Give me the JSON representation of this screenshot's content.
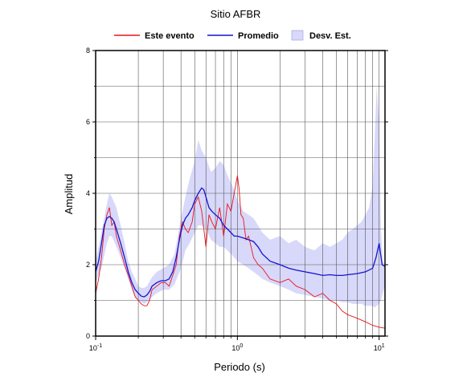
{
  "chart_data": {
    "type": "line",
    "title": "Sitio AFBR",
    "xlabel": "Periodo (s)",
    "ylabel": "Amplitud",
    "x_scale": "log",
    "xlim": [
      0.1,
      11
    ],
    "ylim": [
      0,
      8
    ],
    "grid": true,
    "legend_placement": "top",
    "x_tick_labels": [
      {
        "value": 0.1,
        "base": "10",
        "exp": "-1"
      },
      {
        "value": 1,
        "base": "10",
        "exp": "0"
      },
      {
        "value": 10,
        "base": "10",
        "exp": "1"
      }
    ],
    "y_ticks": [
      0,
      2,
      4,
      6,
      8
    ],
    "legend": [
      {
        "label": "Este evento",
        "color": "#e8141c",
        "kind": "line"
      },
      {
        "label": "Promedio",
        "color": "#1414d2",
        "kind": "line"
      },
      {
        "label": "Desv. Est.",
        "color": "#d8d8fa",
        "kind": "patch"
      }
    ],
    "series": [
      {
        "name": "Este evento",
        "color": "#e8141c",
        "x": [
          0.1,
          0.105,
          0.11,
          0.115,
          0.12,
          0.125,
          0.13,
          0.135,
          0.14,
          0.15,
          0.16,
          0.17,
          0.18,
          0.19,
          0.2,
          0.21,
          0.22,
          0.23,
          0.24,
          0.25,
          0.27,
          0.29,
          0.31,
          0.33,
          0.35,
          0.37,
          0.39,
          0.41,
          0.43,
          0.45,
          0.48,
          0.5,
          0.53,
          0.56,
          0.58,
          0.6,
          0.63,
          0.66,
          0.7,
          0.75,
          0.8,
          0.85,
          0.9,
          0.95,
          1.0,
          1.03,
          1.06,
          1.1,
          1.15,
          1.2,
          1.3,
          1.4,
          1.5,
          1.7,
          2.0,
          2.3,
          2.6,
          3.0,
          3.5,
          4.0,
          4.5,
          5.0,
          5.5,
          6.0,
          7.0,
          8.0,
          9.0,
          10.0,
          11.0
        ],
        "y": [
          1.2,
          1.6,
          2.2,
          3.0,
          3.4,
          3.6,
          3.1,
          3.2,
          2.8,
          2.4,
          2.0,
          1.7,
          1.4,
          1.1,
          1.0,
          0.9,
          0.85,
          0.85,
          1.0,
          1.3,
          1.4,
          1.5,
          1.5,
          1.4,
          1.7,
          2.0,
          2.8,
          3.2,
          3.0,
          2.9,
          3.2,
          3.7,
          3.9,
          3.5,
          3.0,
          2.5,
          3.4,
          3.2,
          3.0,
          3.6,
          2.8,
          3.7,
          3.5,
          4.0,
          4.5,
          4.1,
          3.4,
          3.3,
          2.7,
          2.8,
          2.2,
          2.0,
          1.9,
          1.6,
          1.5,
          1.6,
          1.4,
          1.3,
          1.1,
          1.2,
          1.0,
          0.9,
          0.7,
          0.6,
          0.5,
          0.4,
          0.3,
          0.25,
          0.22
        ]
      },
      {
        "name": "Promedio",
        "color": "#1414d2",
        "x": [
          0.1,
          0.105,
          0.11,
          0.115,
          0.12,
          0.125,
          0.13,
          0.135,
          0.14,
          0.15,
          0.16,
          0.17,
          0.18,
          0.19,
          0.2,
          0.21,
          0.22,
          0.23,
          0.24,
          0.25,
          0.27,
          0.29,
          0.31,
          0.33,
          0.35,
          0.37,
          0.39,
          0.41,
          0.43,
          0.45,
          0.48,
          0.5,
          0.53,
          0.56,
          0.58,
          0.6,
          0.63,
          0.66,
          0.7,
          0.75,
          0.8,
          0.85,
          0.9,
          0.95,
          1.0,
          1.1,
          1.2,
          1.3,
          1.4,
          1.5,
          1.7,
          2.0,
          2.3,
          2.6,
          3.0,
          3.5,
          4.0,
          4.5,
          5.0,
          5.5,
          6.0,
          7.0,
          8.0,
          9.0,
          9.5,
          10.0,
          10.5,
          11.0
        ],
        "y": [
          1.8,
          2.1,
          2.6,
          3.1,
          3.3,
          3.35,
          3.3,
          3.2,
          3.0,
          2.6,
          2.2,
          1.8,
          1.5,
          1.3,
          1.2,
          1.12,
          1.1,
          1.15,
          1.25,
          1.4,
          1.5,
          1.55,
          1.55,
          1.6,
          1.8,
          2.2,
          2.7,
          3.1,
          3.3,
          3.4,
          3.6,
          3.8,
          4.0,
          4.15,
          4.1,
          3.9,
          3.6,
          3.5,
          3.4,
          3.3,
          3.1,
          3.0,
          2.9,
          2.8,
          2.8,
          2.75,
          2.7,
          2.65,
          2.5,
          2.3,
          2.1,
          2.0,
          1.9,
          1.85,
          1.8,
          1.75,
          1.7,
          1.72,
          1.7,
          1.7,
          1.72,
          1.75,
          1.8,
          1.9,
          2.2,
          2.6,
          2.0,
          1.95
        ]
      }
    ],
    "band": {
      "name": "Desv. Est.",
      "color": "#d8d8fa",
      "x": [
        0.1,
        0.11,
        0.12,
        0.125,
        0.13,
        0.14,
        0.15,
        0.16,
        0.17,
        0.18,
        0.19,
        0.2,
        0.21,
        0.22,
        0.23,
        0.25,
        0.27,
        0.3,
        0.33,
        0.36,
        0.4,
        0.43,
        0.46,
        0.5,
        0.53,
        0.56,
        0.6,
        0.65,
        0.7,
        0.75,
        0.8,
        0.85,
        0.9,
        0.95,
        1.0,
        1.1,
        1.2,
        1.3,
        1.4,
        1.5,
        1.7,
        2.0,
        2.3,
        2.6,
        3.0,
        3.5,
        4.0,
        4.5,
        5.0,
        5.5,
        6.0,
        6.5,
        7.0,
        7.5,
        8.0,
        8.5,
        9.0,
        9.3,
        9.6,
        10.0,
        10.3,
        10.6,
        11.0
      ],
      "upper": [
        2.1,
        2.9,
        3.7,
        4.0,
        3.9,
        3.6,
        3.1,
        2.6,
        2.1,
        1.8,
        1.6,
        1.4,
        1.35,
        1.35,
        1.4,
        1.65,
        1.8,
        1.9,
        2.0,
        2.3,
        3.3,
        3.9,
        4.4,
        4.9,
        5.5,
        5.2,
        5.0,
        4.6,
        4.7,
        4.9,
        4.8,
        4.5,
        4.3,
        4.1,
        3.8,
        3.5,
        3.4,
        3.3,
        3.1,
        2.9,
        2.7,
        2.8,
        2.6,
        2.7,
        2.5,
        2.4,
        2.6,
        2.5,
        2.6,
        2.7,
        2.9,
        3.0,
        3.1,
        3.2,
        3.4,
        3.6,
        4.2,
        5.5,
        7.0,
        6.0,
        3.0,
        2.1,
        2.0
      ],
      "lower": [
        1.5,
        1.9,
        2.6,
        2.8,
        2.8,
        2.5,
        2.2,
        1.9,
        1.6,
        1.3,
        1.1,
        1.0,
        0.95,
        0.9,
        0.95,
        1.1,
        1.2,
        1.3,
        1.3,
        1.45,
        1.9,
        2.4,
        2.6,
        2.9,
        3.1,
        3.1,
        3.0,
        2.7,
        2.6,
        2.5,
        2.5,
        2.4,
        2.3,
        2.2,
        2.1,
        2.0,
        1.9,
        1.8,
        1.7,
        1.6,
        1.5,
        1.4,
        1.3,
        1.2,
        1.15,
        1.1,
        1.05,
        1.0,
        1.0,
        0.95,
        0.95,
        0.9,
        0.9,
        0.9,
        0.85,
        0.85,
        0.85,
        0.8,
        0.85,
        0.9,
        1.0,
        1.2,
        1.4
      ]
    }
  }
}
